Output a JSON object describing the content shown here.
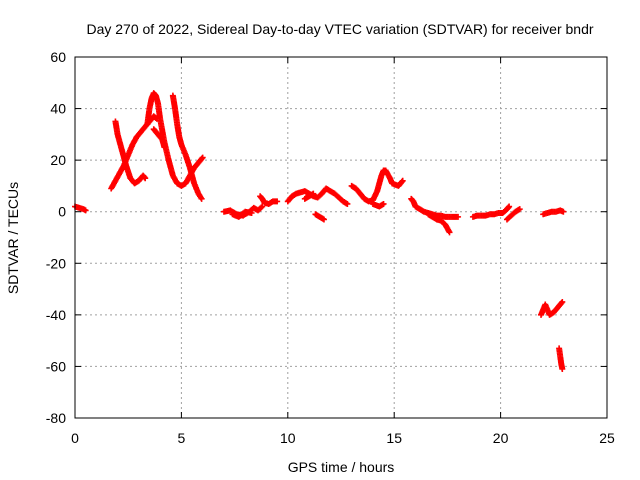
{
  "chart_data": {
    "type": "scatter",
    "title": "Day 270 of 2022, Sidereal Day-to-day VTEC variation (SDTVAR) for receiver bndr",
    "xlabel": "GPS time / hours",
    "ylabel": "SDTVAR / TECUs",
    "xlim": [
      0,
      25
    ],
    "ylim": [
      -80,
      60
    ],
    "xticks": [
      0,
      5,
      10,
      15,
      20,
      25
    ],
    "yticks": [
      -80,
      -60,
      -40,
      -20,
      0,
      20,
      40,
      60
    ],
    "grid": true,
    "marker": "+",
    "color": "#ff0000",
    "series": [
      {
        "name": "SDTVAR",
        "segments": [
          [
            [
              0.0,
              2
            ],
            [
              0.2,
              1.5
            ],
            [
              0.4,
              1
            ],
            [
              0.5,
              0.5
            ]
          ],
          [
            [
              1.7,
              9
            ],
            [
              1.9,
              12
            ],
            [
              2.1,
              15
            ],
            [
              2.3,
              18
            ],
            [
              2.5,
              22
            ],
            [
              2.7,
              26
            ],
            [
              2.9,
              29
            ],
            [
              3.1,
              31
            ],
            [
              3.3,
              33
            ],
            [
              3.5,
              35
            ],
            [
              3.7,
              37
            ],
            [
              3.85,
              36
            ]
          ],
          [
            [
              1.9,
              35
            ],
            [
              2.0,
              30
            ],
            [
              2.2,
              24
            ],
            [
              2.4,
              18
            ],
            [
              2.6,
              13
            ],
            [
              2.8,
              11
            ],
            [
              3.0,
              12
            ],
            [
              3.2,
              14
            ],
            [
              3.3,
              13
            ]
          ],
          [
            [
              3.4,
              34
            ],
            [
              3.5,
              40
            ],
            [
              3.6,
              44
            ],
            [
              3.7,
              46
            ],
            [
              3.8,
              45
            ],
            [
              3.9,
              42
            ],
            [
              4.0,
              36
            ],
            [
              4.2,
              27
            ],
            [
              4.4,
              20
            ],
            [
              4.6,
              14
            ],
            [
              4.8,
              11
            ],
            [
              5.0,
              10
            ],
            [
              5.2,
              11
            ],
            [
              5.4,
              14
            ],
            [
              5.6,
              17
            ],
            [
              5.8,
              19
            ],
            [
              6.0,
              21
            ]
          ],
          [
            [
              4.6,
              45
            ],
            [
              4.7,
              40
            ],
            [
              4.8,
              34
            ],
            [
              4.9,
              29
            ],
            [
              5.0,
              26
            ],
            [
              5.2,
              22
            ],
            [
              5.4,
              17
            ],
            [
              5.6,
              11
            ],
            [
              5.8,
              7
            ],
            [
              5.95,
              5
            ]
          ],
          [
            [
              3.7,
              32
            ],
            [
              3.9,
              30
            ],
            [
              4.1,
              28
            ],
            [
              4.2,
              25
            ]
          ],
          [
            [
              7.0,
              0
            ],
            [
              7.3,
              0.5
            ],
            [
              7.6,
              -1
            ],
            [
              7.9,
              -1.5
            ],
            [
              8.2,
              0
            ],
            [
              8.4,
              1.5
            ],
            [
              8.6,
              0.5
            ],
            [
              8.8,
              2
            ]
          ],
          [
            [
              7.4,
              -1
            ],
            [
              7.7,
              -2
            ],
            [
              8.0,
              0
            ],
            [
              8.3,
              -0.5
            ]
          ],
          [
            [
              8.7,
              6
            ],
            [
              8.8,
              5
            ],
            [
              8.9,
              3.5
            ],
            [
              9.1,
              3
            ],
            [
              9.3,
              4
            ],
            [
              9.5,
              4
            ]
          ],
          [
            [
              10.0,
              4
            ],
            [
              10.2,
              6
            ],
            [
              10.4,
              7
            ],
            [
              10.6,
              7.5
            ],
            [
              10.8,
              8
            ],
            [
              11.0,
              7
            ],
            [
              11.2,
              6
            ],
            [
              11.4,
              5.5
            ],
            [
              11.6,
              7
            ],
            [
              11.8,
              9
            ],
            [
              12.0,
              8
            ],
            [
              12.2,
              7
            ],
            [
              12.4,
              5.5
            ],
            [
              12.6,
              4
            ],
            [
              12.8,
              3
            ]
          ],
          [
            [
              10.8,
              5
            ],
            [
              11.0,
              6
            ],
            [
              11.2,
              7
            ]
          ],
          [
            [
              11.3,
              -1
            ],
            [
              11.5,
              -2
            ],
            [
              11.7,
              -3
            ]
          ],
          [
            [
              13.0,
              10
            ],
            [
              13.2,
              9
            ],
            [
              13.4,
              7
            ],
            [
              13.6,
              5
            ],
            [
              13.8,
              4
            ],
            [
              14.0,
              4.5
            ],
            [
              14.2,
              8
            ],
            [
              14.4,
              14
            ],
            [
              14.5,
              16
            ],
            [
              14.6,
              16
            ],
            [
              14.8,
              13
            ],
            [
              14.9,
              11
            ],
            [
              15.2,
              10
            ],
            [
              15.4,
              12
            ]
          ],
          [
            [
              14.0,
              3
            ],
            [
              14.3,
              2
            ],
            [
              14.5,
              3
            ]
          ],
          [
            [
              15.8,
              5
            ],
            [
              15.9,
              4
            ],
            [
              16.0,
              2
            ],
            [
              16.2,
              1
            ],
            [
              16.4,
              0
            ],
            [
              16.6,
              -0.5
            ],
            [
              16.8,
              -1
            ],
            [
              17.0,
              -1.5
            ],
            [
              17.2,
              -1.5
            ],
            [
              17.4,
              -2
            ],
            [
              17.6,
              -2
            ],
            [
              17.8,
              -2
            ],
            [
              18.0,
              -2
            ]
          ],
          [
            [
              16.6,
              -1
            ],
            [
              16.8,
              -2
            ],
            [
              17.0,
              -3
            ],
            [
              17.2,
              -3.5
            ],
            [
              17.4,
              -5
            ],
            [
              17.6,
              -8
            ]
          ],
          [
            [
              18.7,
              -2
            ],
            [
              18.9,
              -1.5
            ],
            [
              19.1,
              -1.5
            ],
            [
              19.3,
              -1.5
            ],
            [
              19.5,
              -1
            ],
            [
              19.7,
              -1
            ],
            [
              19.9,
              -0.5
            ],
            [
              20.1,
              -0.5
            ],
            [
              20.3,
              1
            ],
            [
              20.4,
              2
            ]
          ],
          [
            [
              20.3,
              -3
            ],
            [
              20.5,
              -1.5
            ],
            [
              20.7,
              0
            ],
            [
              20.9,
              1
            ]
          ],
          [
            [
              21.9,
              -40
            ],
            [
              22.0,
              -38
            ],
            [
              22.1,
              -36
            ],
            [
              22.3,
              -40
            ],
            [
              22.5,
              -39
            ],
            [
              22.7,
              -37
            ],
            [
              22.9,
              -35
            ]
          ],
          [
            [
              22.0,
              -1
            ],
            [
              22.2,
              -0.5
            ],
            [
              22.4,
              0
            ],
            [
              22.6,
              0
            ],
            [
              22.8,
              0.5
            ],
            [
              22.95,
              0
            ]
          ],
          [
            [
              22.75,
              -53
            ],
            [
              22.8,
              -56
            ],
            [
              22.85,
              -59
            ],
            [
              22.9,
              -61
            ]
          ]
        ]
      }
    ]
  }
}
